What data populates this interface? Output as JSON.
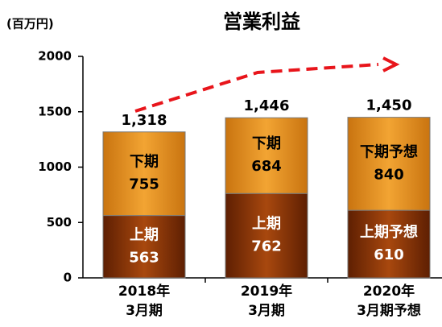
{
  "chart_data": {
    "type": "stacked_bar",
    "title": "営業利益",
    "unit_label": "(百万円)",
    "categories": [
      [
        "2018年",
        "3月期"
      ],
      [
        "2019年",
        "3月期"
      ],
      [
        "2020年",
        "3月期予想"
      ]
    ],
    "series": [
      {
        "name": "上期",
        "color": "#8a3306",
        "values": [
          563,
          762,
          610
        ],
        "segment_labels": [
          "上期",
          "上期",
          "上期予想"
        ]
      },
      {
        "name": "下期",
        "color": "#e8921c",
        "values": [
          755,
          684,
          840
        ],
        "segment_labels": [
          "下期",
          "下期",
          "下期予想"
        ]
      }
    ],
    "totals": [
      1318,
      1446,
      1450
    ],
    "total_labels": [
      "1,318",
      "1,446",
      "1,450"
    ],
    "ylim": [
      0,
      2000
    ],
    "yticks": [
      0,
      500,
      1000,
      1500,
      2000
    ],
    "grid": false
  }
}
